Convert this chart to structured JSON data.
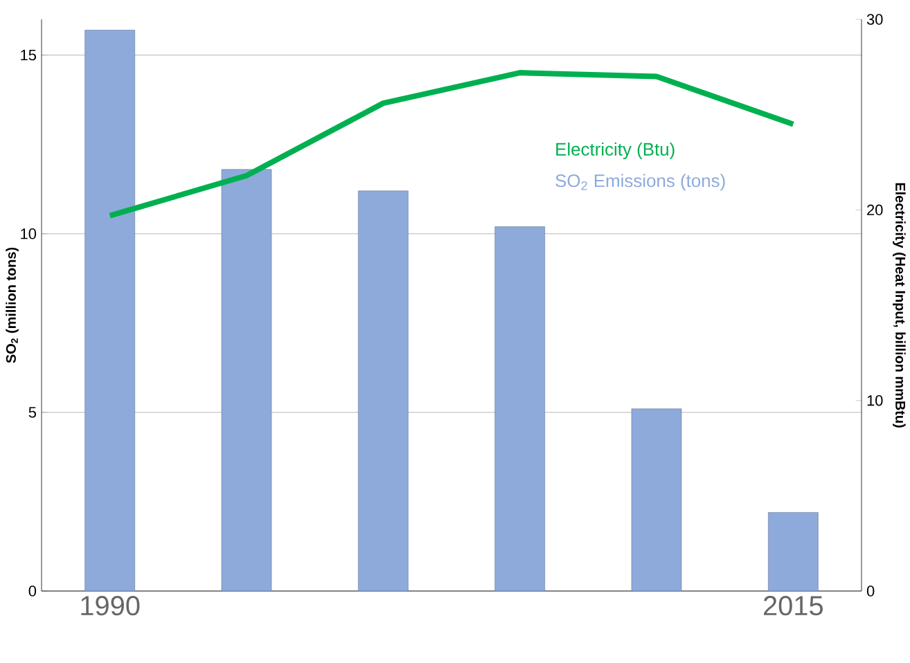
{
  "chart_data": {
    "type": "bar",
    "categories": [
      "1990",
      null,
      null,
      null,
      null,
      "2015"
    ],
    "series": [
      {
        "name": "SO$_{2}$ Emissions (tons)",
        "color": "#8eaadb",
        "values": [
          15.7,
          11.8,
          11.2,
          10.2,
          5.1,
          2.2
        ]
      },
      {
        "name": "Electricity (Btu)",
        "type": "line",
        "axis": "y2",
        "color": "#00b050",
        "values": [
          19.7,
          21.8,
          25.6,
          27.2,
          27.0,
          24.5
        ]
      }
    ],
    "ylabel": "SO$_{2}$ (million tons)",
    "y2label": "Electricity (Heat Input, billion mmBtu)",
    "ylim": [
      0,
      16
    ],
    "yticks": [
      0,
      5,
      10,
      15
    ],
    "y2lim": [
      0,
      30
    ],
    "y2ticks": [
      0,
      10,
      20,
      30
    ],
    "grid": "y",
    "marker": "none",
    "line_style": "solid"
  }
}
